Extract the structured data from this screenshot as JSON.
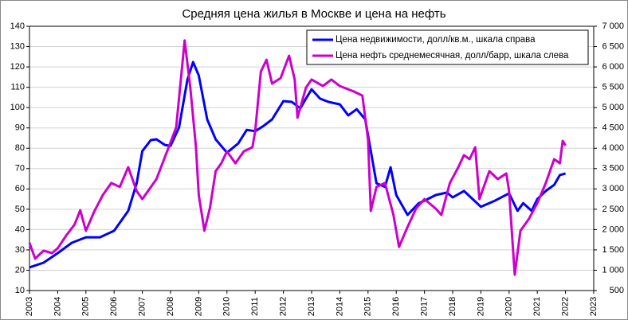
{
  "chart_data": {
    "type": "line",
    "title": "Средняя цена жилья в Москве и цена на нефть",
    "xlim": [
      2003,
      2023
    ],
    "xticks": [
      2003,
      2004,
      2005,
      2006,
      2007,
      2008,
      2009,
      2010,
      2011,
      2012,
      2013,
      2014,
      2015,
      2016,
      2017,
      2018,
      2019,
      2020,
      2021,
      2022,
      2023
    ],
    "ylim": [
      10,
      140
    ],
    "yticks": [
      10,
      20,
      30,
      40,
      50,
      60,
      70,
      80,
      90,
      100,
      110,
      120,
      130,
      140
    ],
    "y2lim": [
      500,
      7000
    ],
    "y2ticks": [
      500,
      {
        "value": 1000,
        "label": "1 000"
      },
      {
        "value": 1500,
        "label": "1 500"
      },
      {
        "value": 2000,
        "label": "2 000"
      },
      {
        "value": 2500,
        "label": "2 500"
      },
      {
        "value": 3000,
        "label": "3 000"
      },
      {
        "value": 3500,
        "label": "3 500"
      },
      {
        "value": 4000,
        "label": "4 000"
      },
      {
        "value": 4500,
        "label": "4 500"
      },
      {
        "value": 5000,
        "label": "5 000"
      },
      {
        "value": 5500,
        "label": "5 500"
      },
      {
        "value": 6000,
        "label": "6 000"
      },
      {
        "value": 6500,
        "label": "6 500"
      },
      {
        "value": 7000,
        "label": "7 000"
      }
    ],
    "grid": true,
    "series": [
      {
        "name": "Цена недвижимости, долл/кв.м., шкала справа",
        "color": "#0000ff",
        "axis": "y2",
        "x": [
          2003.0,
          2003.5,
          2004.0,
          2004.5,
          2005.0,
          2005.5,
          2006.0,
          2006.5,
          2006.8,
          2007.0,
          2007.3,
          2007.5,
          2007.8,
          2008.0,
          2008.3,
          2008.6,
          2008.8,
          2009.0,
          2009.3,
          2009.6,
          2010.0,
          2010.4,
          2010.7,
          2011.0,
          2011.3,
          2011.6,
          2012.0,
          2012.3,
          2012.6,
          2012.8,
          2013.0,
          2013.3,
          2013.6,
          2014.0,
          2014.3,
          2014.6,
          2014.9,
          2015.0,
          2015.3,
          2015.6,
          2015.8,
          2016.0,
          2016.4,
          2016.8,
          2017.0,
          2017.4,
          2017.8,
          2018.0,
          2018.4,
          2018.8,
          2019.0,
          2019.5,
          2020.0,
          2020.3,
          2020.5,
          2020.8,
          2021.0,
          2021.3,
          2021.6,
          2021.8,
          2022.0
        ],
        "values": [
          1070,
          1185,
          1420,
          1675,
          1810,
          1810,
          1970,
          2460,
          3140,
          3930,
          4200,
          4220,
          4080,
          4060,
          4510,
          5690,
          6120,
          5790,
          4710,
          4220,
          3890,
          4120,
          4450,
          4420,
          4550,
          4710,
          5160,
          5140,
          4980,
          5220,
          5450,
          5220,
          5140,
          5080,
          4810,
          4960,
          4710,
          4320,
          3140,
          3050,
          3530,
          2850,
          2360,
          2650,
          2710,
          2850,
          2910,
          2790,
          2950,
          2690,
          2560,
          2710,
          2890,
          2460,
          2650,
          2460,
          2750,
          2950,
          3100,
          3340,
          3380
        ]
      },
      {
        "name": "Цена нефть среднемесячная, долл/барр, шкала слева",
        "color": "#cc00cc",
        "x": [
          2003.0,
          2003.2,
          2003.5,
          2003.8,
          2004.0,
          2004.3,
          2004.6,
          2004.8,
          2005.0,
          2005.3,
          2005.6,
          2005.9,
          2006.2,
          2006.5,
          2006.8,
          2007.0,
          2007.5,
          2007.9,
          2008.2,
          2008.5,
          2008.7,
          2008.9,
          2009.0,
          2009.2,
          2009.4,
          2009.6,
          2009.8,
          2010.0,
          2010.3,
          2010.6,
          2010.9,
          2011.0,
          2011.2,
          2011.4,
          2011.6,
          2011.9,
          2012.2,
          2012.4,
          2012.5,
          2012.8,
          2013.0,
          2013.4,
          2013.7,
          2014.0,
          2014.5,
          2014.8,
          2015.0,
          2015.1,
          2015.3,
          2015.6,
          2015.9,
          2016.1,
          2016.4,
          2016.7,
          2017.0,
          2017.4,
          2017.6,
          2017.9,
          2018.2,
          2018.4,
          2018.6,
          2018.8,
          2018.95,
          2019.3,
          2019.6,
          2019.9,
          2020.0,
          2020.2,
          2020.4,
          2020.7,
          2021.0,
          2021.3,
          2021.6,
          2021.8,
          2021.9,
          2022.0
        ],
        "values": [
          33.5,
          25.7,
          29.6,
          28.4,
          30.8,
          37,
          42.5,
          49.5,
          39.4,
          49,
          57,
          62.9,
          61,
          70.7,
          58.9,
          55,
          64.8,
          79.3,
          90.3,
          133,
          109.8,
          80.5,
          57,
          39.4,
          51,
          68.7,
          72.6,
          78.5,
          72.6,
          78.5,
          80.5,
          88.3,
          117.7,
          123.5,
          111.8,
          114.5,
          125.5,
          113.8,
          95,
          109.8,
          113.8,
          110.6,
          113.8,
          110.6,
          107.9,
          105.9,
          84.4,
          49.2,
          61,
          62.9,
          47.2,
          31.5,
          41.3,
          50.3,
          55,
          50.3,
          47.2,
          62.9,
          70.7,
          76.6,
          74.6,
          80.5,
          55,
          68.7,
          64.8,
          67.6,
          58.9,
          17.8,
          39.4,
          45.2,
          53,
          62.9,
          74.6,
          72.6,
          83.6,
          81.3
        ]
      }
    ]
  }
}
